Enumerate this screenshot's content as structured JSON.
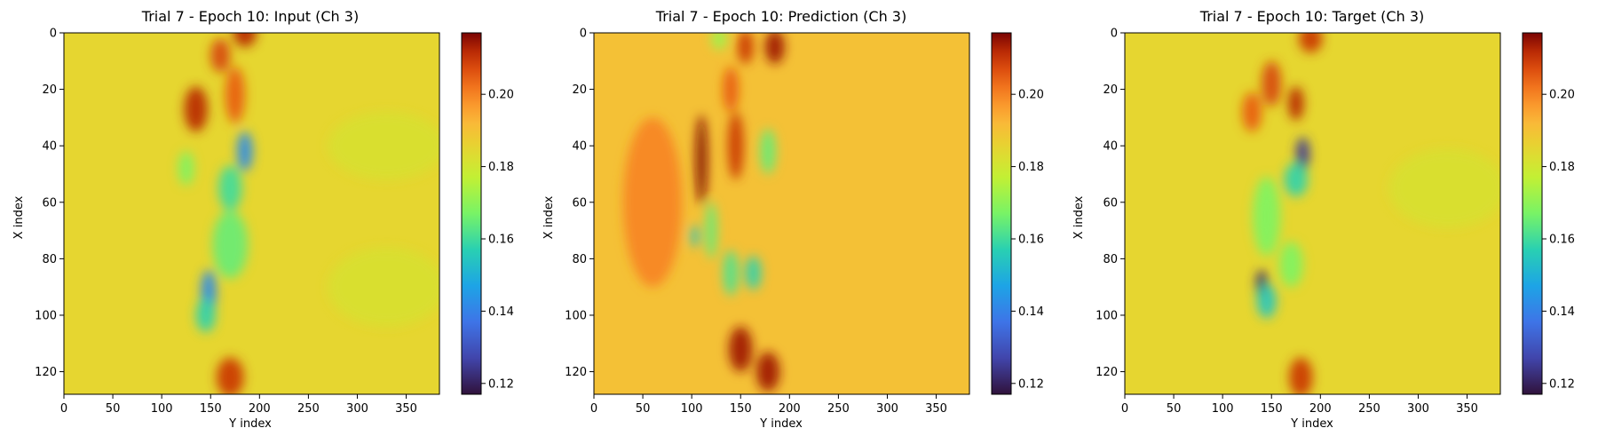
{
  "chart_data": [
    {
      "type": "heatmap",
      "title": "Trial 7 - Epoch 10: Input (Ch 3)",
      "xlabel": "Y index",
      "ylabel": "X index",
      "xlim": [
        0,
        384
      ],
      "ylim": [
        128,
        0
      ],
      "x_ticks": [
        "0",
        "50",
        "100",
        "150",
        "200",
        "250",
        "300",
        "350"
      ],
      "y_ticks": [
        "0",
        "20",
        "40",
        "60",
        "80",
        "100",
        "120"
      ],
      "colorbar": {
        "min": 0.117,
        "max": 0.217,
        "ticks": [
          "0.12",
          "0.14",
          "0.16",
          "0.18",
          "0.20"
        ],
        "colormap": "turbo"
      },
      "background_value": 0.185,
      "features": [
        {
          "y": 185,
          "x": 0,
          "sy": 12,
          "sx": 5,
          "v": 0.212
        },
        {
          "y": 160,
          "x": 8,
          "sy": 10,
          "sx": 6,
          "v": 0.208
        },
        {
          "y": 135,
          "x": 27,
          "sy": 12,
          "sx": 8,
          "v": 0.212
        },
        {
          "y": 175,
          "x": 22,
          "sy": 10,
          "sx": 10,
          "v": 0.205
        },
        {
          "y": 185,
          "x": 42,
          "sy": 8,
          "sx": 7,
          "v": 0.142
        },
        {
          "y": 170,
          "x": 55,
          "sy": 12,
          "sx": 8,
          "v": 0.16
        },
        {
          "y": 125,
          "x": 48,
          "sy": 8,
          "sx": 6,
          "v": 0.168
        },
        {
          "y": 170,
          "x": 75,
          "sy": 18,
          "sx": 12,
          "v": 0.165
        },
        {
          "y": 148,
          "x": 92,
          "sy": 8,
          "sx": 8,
          "v": 0.142
        },
        {
          "y": 145,
          "x": 100,
          "sy": 10,
          "sx": 6,
          "v": 0.158
        },
        {
          "y": 170,
          "x": 122,
          "sy": 14,
          "sx": 7,
          "v": 0.21
        },
        {
          "y": 330,
          "x": 40,
          "sy": 60,
          "sx": 12,
          "v": 0.182
        },
        {
          "y": 330,
          "x": 90,
          "sy": 60,
          "sx": 14,
          "v": 0.182
        }
      ]
    },
    {
      "type": "heatmap",
      "title": "Trial 7 - Epoch 10: Prediction (Ch 3)",
      "xlabel": "Y index",
      "ylabel": "X index",
      "xlim": [
        0,
        384
      ],
      "ylim": [
        128,
        0
      ],
      "x_ticks": [
        "0",
        "50",
        "100",
        "150",
        "200",
        "250",
        "300",
        "350"
      ],
      "y_ticks": [
        "0",
        "20",
        "40",
        "60",
        "80",
        "100",
        "120"
      ],
      "colorbar": {
        "min": 0.117,
        "max": 0.217,
        "ticks": [
          "0.12",
          "0.14",
          "0.16",
          "0.18",
          "0.20"
        ],
        "colormap": "turbo"
      },
      "background_value": 0.19,
      "features": [
        {
          "y": 185,
          "x": 5,
          "sy": 10,
          "sx": 6,
          "v": 0.214
        },
        {
          "y": 155,
          "x": 5,
          "sy": 8,
          "sx": 6,
          "v": 0.21
        },
        {
          "y": 128,
          "x": 2,
          "sy": 8,
          "sx": 4,
          "v": 0.172
        },
        {
          "y": 110,
          "x": 45,
          "sy": 6,
          "sx": 16,
          "v": 0.216
        },
        {
          "y": 145,
          "x": 40,
          "sy": 8,
          "sx": 12,
          "v": 0.21
        },
        {
          "y": 178,
          "x": 42,
          "sy": 8,
          "sx": 8,
          "v": 0.165
        },
        {
          "y": 120,
          "x": 70,
          "sy": 6,
          "sx": 10,
          "v": 0.165
        },
        {
          "y": 103,
          "x": 72,
          "sy": 4,
          "sx": 4,
          "v": 0.155
        },
        {
          "y": 140,
          "x": 85,
          "sy": 8,
          "sx": 8,
          "v": 0.162
        },
        {
          "y": 163,
          "x": 85,
          "sy": 8,
          "sx": 6,
          "v": 0.158
        },
        {
          "y": 150,
          "x": 112,
          "sy": 12,
          "sx": 8,
          "v": 0.214
        },
        {
          "y": 178,
          "x": 120,
          "sy": 12,
          "sx": 7,
          "v": 0.214
        },
        {
          "y": 140,
          "x": 20,
          "sy": 8,
          "sx": 8,
          "v": 0.205
        },
        {
          "y": 60,
          "x": 60,
          "sy": 30,
          "sx": 30,
          "v": 0.2
        }
      ]
    },
    {
      "type": "heatmap",
      "title": "Trial 7 - Epoch 10: Target (Ch 3)",
      "xlabel": "Y index",
      "ylabel": "X index",
      "xlim": [
        0,
        384
      ],
      "ylim": [
        128,
        0
      ],
      "x_ticks": [
        "0",
        "50",
        "100",
        "150",
        "200",
        "250",
        "300",
        "350"
      ],
      "y_ticks": [
        "0",
        "20",
        "40",
        "60",
        "80",
        "100",
        "120"
      ],
      "colorbar": {
        "min": 0.117,
        "max": 0.217,
        "ticks": [
          "0.12",
          "0.14",
          "0.16",
          "0.18",
          "0.20"
        ],
        "colormap": "turbo"
      },
      "background_value": 0.185,
      "features": [
        {
          "y": 190,
          "x": 2,
          "sy": 12,
          "sx": 5,
          "v": 0.21
        },
        {
          "y": 150,
          "x": 18,
          "sy": 10,
          "sx": 8,
          "v": 0.208
        },
        {
          "y": 130,
          "x": 28,
          "sy": 10,
          "sx": 7,
          "v": 0.205
        },
        {
          "y": 175,
          "x": 25,
          "sy": 8,
          "sx": 6,
          "v": 0.212
        },
        {
          "y": 182,
          "x": 43,
          "sy": 7,
          "sx": 6,
          "v": 0.125
        },
        {
          "y": 175,
          "x": 52,
          "sy": 12,
          "sx": 6,
          "v": 0.158
        },
        {
          "y": 145,
          "x": 65,
          "sy": 14,
          "sx": 14,
          "v": 0.168
        },
        {
          "y": 140,
          "x": 89,
          "sy": 6,
          "sx": 5,
          "v": 0.122
        },
        {
          "y": 145,
          "x": 95,
          "sy": 10,
          "sx": 6,
          "v": 0.155
        },
        {
          "y": 170,
          "x": 82,
          "sy": 12,
          "sx": 8,
          "v": 0.168
        },
        {
          "y": 180,
          "x": 122,
          "sy": 12,
          "sx": 7,
          "v": 0.21
        },
        {
          "y": 330,
          "x": 55,
          "sy": 60,
          "sx": 14,
          "v": 0.182
        }
      ]
    }
  ]
}
